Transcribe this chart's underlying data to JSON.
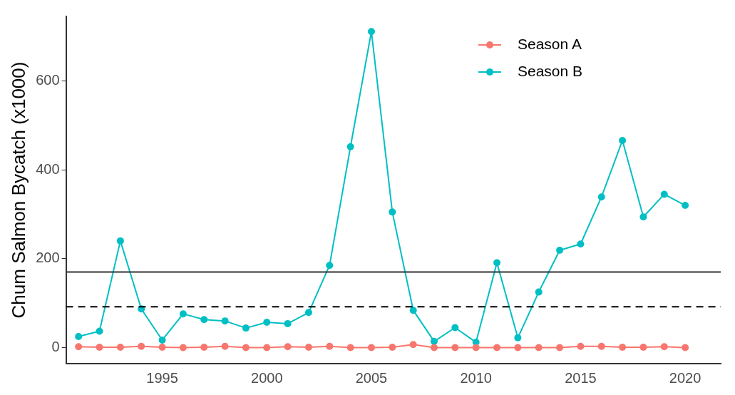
{
  "chart_data": {
    "type": "line",
    "ylabel": "Chum Salmon Bycatch (x1000)",
    "x": [
      1991,
      1992,
      1993,
      1994,
      1995,
      1996,
      1997,
      1998,
      1999,
      2000,
      2001,
      2002,
      2003,
      2004,
      2005,
      2006,
      2007,
      2008,
      2009,
      2010,
      2011,
      2012,
      2013,
      2014,
      2015,
      2016,
      2017,
      2018,
      2019,
      2020
    ],
    "series": [
      {
        "name": "Season A",
        "color": "#f8766d",
        "values": [
          2,
          1,
          1,
          3,
          1,
          0,
          1,
          3,
          0,
          0,
          2,
          1,
          3,
          0,
          0,
          1,
          7,
          0,
          0,
          0,
          0,
          0,
          0,
          0,
          3,
          3,
          1,
          1,
          2,
          0
        ]
      },
      {
        "name": "Season B",
        "color": "#00bfc4",
        "values": [
          25,
          37,
          240,
          87,
          17,
          76,
          63,
          60,
          44,
          57,
          54,
          79,
          185,
          452,
          711,
          305,
          84,
          14,
          45,
          12,
          191,
          22,
          125,
          219,
          233,
          339,
          466,
          294,
          345,
          320
        ]
      }
    ],
    "xlim": [
      1990.4,
      2021.7
    ],
    "xticks": [
      1995,
      2000,
      2005,
      2010,
      2015,
      2020
    ],
    "ylim": [
      -36,
      745
    ],
    "yticks": [
      0,
      200,
      400,
      600
    ],
    "ref_lines": [
      {
        "axis": "y",
        "value": 170,
        "color": "#333333",
        "line_style": "solid"
      },
      {
        "axis": "y",
        "value": 92,
        "color": "#000000",
        "line_style": "dashed"
      }
    ],
    "grid": false,
    "legend": "top right",
    "marker": "circle",
    "line_style": "solid"
  }
}
